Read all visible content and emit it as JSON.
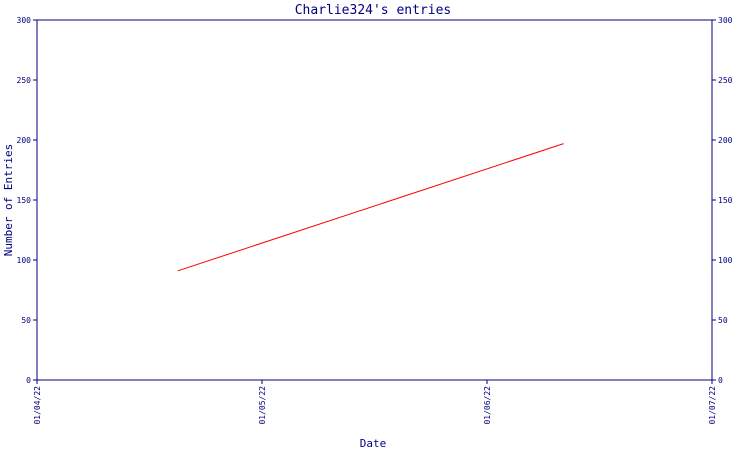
{
  "chart_data": {
    "type": "line",
    "title": "Charlie324's entries",
    "xlabel": "Date",
    "ylabel": "Number of Entries",
    "x_ticks": [
      "01/04/22",
      "01/05/22",
      "01/06/22",
      "01/07/22"
    ],
    "xlim": [
      "2022-04-01",
      "2022-07-01"
    ],
    "ylim": [
      0,
      300
    ],
    "y_ticks": [
      0,
      50,
      100,
      150,
      200,
      250,
      300
    ],
    "right_axis": true,
    "grid": false,
    "series": [
      {
        "color": "#ff0000",
        "x": [
          "2022-04-20",
          "2022-06-11"
        ],
        "y": [
          91,
          197
        ]
      }
    ]
  }
}
